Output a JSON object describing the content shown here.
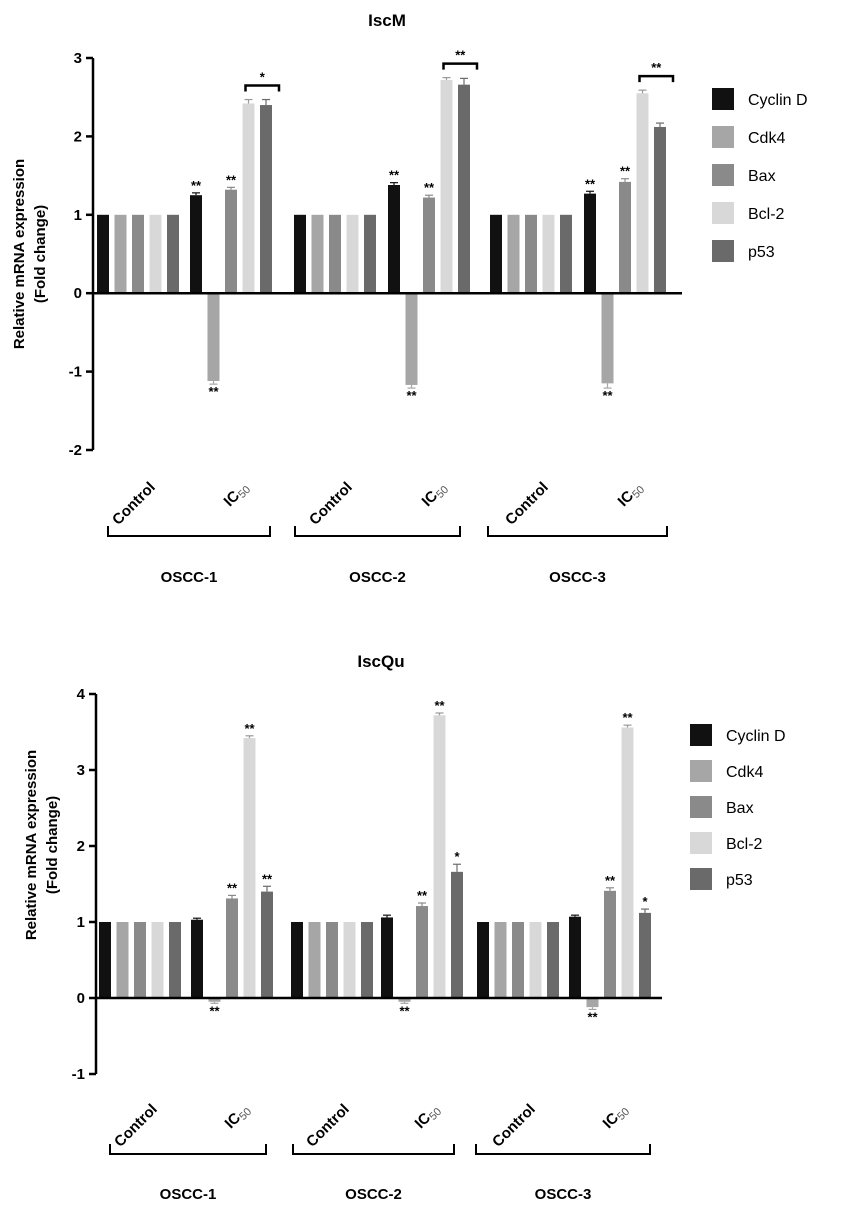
{
  "chart_data": [
    {
      "type": "bar",
      "title": "IscM",
      "ylabel_line1": "Relative mRNA expression",
      "ylabel_line2": "(Fold change)",
      "ylim": [
        -2,
        3
      ],
      "yticks": [
        3,
        2,
        1,
        0,
        -1,
        -2
      ],
      "categories": [
        "Control",
        "IC50",
        "Control",
        "IC50",
        "Control",
        "IC50"
      ],
      "category_main": "IC",
      "category_sub": "50",
      "groups": [
        "OSCC-1",
        "OSCC-2",
        "OSCC-3"
      ],
      "series": [
        {
          "name": "Cyclin D",
          "color": "#111111",
          "values": [
            1,
            1.25,
            1,
            1.38,
            1,
            1.27
          ],
          "errors": [
            0,
            0.03,
            0,
            0.03,
            0,
            0.03
          ],
          "annotations": [
            "",
            "**",
            "",
            "**",
            "",
            "**"
          ]
        },
        {
          "name": "Cdk4",
          "color": "#a6a6a6",
          "values": [
            1,
            -1.12,
            1,
            -1.17,
            1,
            -1.15
          ],
          "errors": [
            0,
            0.04,
            0,
            0.04,
            0,
            0.06
          ],
          "annotations": [
            "",
            "**",
            "",
            "**",
            "",
            "**"
          ]
        },
        {
          "name": "Bax",
          "color": "#8a8a8a",
          "values": [
            1,
            1.32,
            1,
            1.22,
            1,
            1.42
          ],
          "errors": [
            0,
            0.03,
            0,
            0.03,
            0,
            0.04
          ],
          "annotations": [
            "",
            "**",
            "",
            "**",
            "",
            "**"
          ]
        },
        {
          "name": "Bcl-2",
          "color": "#d8d8d8",
          "values": [
            1,
            2.42,
            1,
            2.72,
            1,
            2.55
          ],
          "errors": [
            0,
            0.05,
            0,
            0.03,
            0,
            0.04
          ],
          "annotations": [
            "",
            "",
            "",
            "",
            "",
            ""
          ]
        },
        {
          "name": "p53",
          "color": "#6a6a6a",
          "values": [
            1,
            2.4,
            1,
            2.66,
            1,
            2.12
          ],
          "errors": [
            0,
            0.07,
            0,
            0.08,
            0,
            0.05
          ],
          "annotations": [
            "",
            "",
            "",
            "",
            "",
            ""
          ]
        }
      ],
      "brackets": [
        {
          "category": 1,
          "label": "*"
        },
        {
          "category": 3,
          "label": "**"
        },
        {
          "category": 5,
          "label": "**"
        }
      ]
    },
    {
      "type": "bar",
      "title": "IscQu",
      "ylabel_line1": "Relative mRNA expression",
      "ylabel_line2": "(Fold change)",
      "ylim": [
        -1,
        4
      ],
      "yticks": [
        4,
        3,
        2,
        1,
        0,
        -1
      ],
      "categories": [
        "Control",
        "IC50",
        "Control",
        "IC50",
        "Control",
        "IC50"
      ],
      "category_main": "IC",
      "category_sub": "50",
      "groups": [
        "OSCC-1",
        "OSCC-2",
        "OSCC-3"
      ],
      "series": [
        {
          "name": "Cyclin D",
          "color": "#111111",
          "values": [
            1,
            1.03,
            1,
            1.06,
            1,
            1.07
          ],
          "errors": [
            0,
            0.02,
            0,
            0.03,
            0,
            0.02
          ],
          "annotations": [
            "",
            "",
            "",
            "",
            "",
            ""
          ]
        },
        {
          "name": "Cdk4",
          "color": "#a6a6a6",
          "values": [
            1,
            -0.05,
            1,
            -0.05,
            1,
            -0.12
          ],
          "errors": [
            0,
            0.02,
            0,
            0.02,
            0,
            0.03
          ],
          "annotations": [
            "",
            "**",
            "",
            "**",
            "",
            "**"
          ]
        },
        {
          "name": "Bax",
          "color": "#8a8a8a",
          "values": [
            1,
            1.31,
            1,
            1.21,
            1,
            1.41
          ],
          "errors": [
            0,
            0.04,
            0,
            0.04,
            0,
            0.04
          ],
          "annotations": [
            "",
            "**",
            "",
            "**",
            "",
            "**"
          ]
        },
        {
          "name": "Bcl-2",
          "color": "#d8d8d8",
          "values": [
            1,
            3.42,
            1,
            3.72,
            1,
            3.56
          ],
          "errors": [
            0,
            0.03,
            0,
            0.03,
            0,
            0.03
          ],
          "annotations": [
            "",
            "**",
            "",
            "**",
            "",
            "**"
          ]
        },
        {
          "name": "p53",
          "color": "#6a6a6a",
          "values": [
            1,
            1.4,
            1,
            1.66,
            1,
            1.12
          ],
          "errors": [
            0,
            0.07,
            0,
            0.1,
            0,
            0.05
          ],
          "annotations": [
            "",
            "**",
            "",
            "*",
            "",
            "*"
          ]
        }
      ],
      "brackets": []
    }
  ]
}
